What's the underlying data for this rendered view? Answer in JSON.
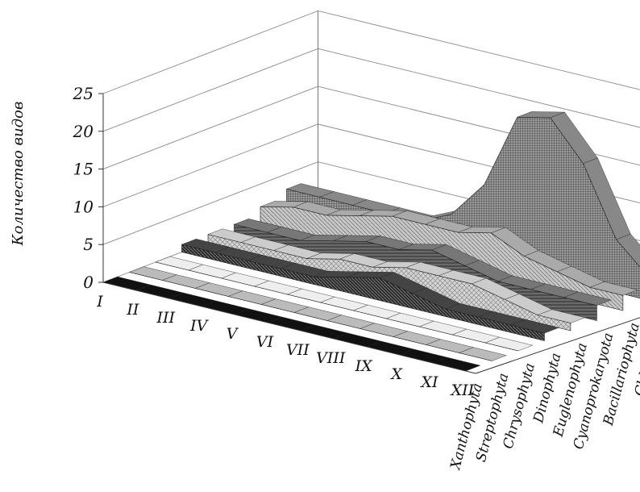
{
  "chart_data": {
    "type": "area",
    "variant": "3d-ribbon",
    "title": "",
    "ylabel": "Количество видов",
    "ylim": [
      0,
      25
    ],
    "yticks": [
      "0",
      "5",
      "10",
      "15",
      "20",
      "25"
    ],
    "categories": [
      "I",
      "II",
      "III",
      "IV",
      "V",
      "VI",
      "VII",
      "VIII",
      "IX",
      "X",
      "XI",
      "XII"
    ],
    "series_names": [
      "Xanthophyta",
      "Streptophyta",
      "Chrysophyta",
      "Dinophyta",
      "Euglenophyta",
      "Cyanoprokaryota",
      "Bacillariophyta",
      "Chlorophyta"
    ],
    "series": [
      {
        "values": [
          0,
          0,
          0,
          0,
          0,
          0,
          0,
          0,
          0,
          0,
          0,
          0
        ]
      },
      {
        "values": [
          0,
          0,
          0,
          0,
          0,
          0,
          0,
          0,
          0,
          0,
          0,
          0
        ]
      },
      {
        "values": [
          0,
          0,
          0,
          0,
          0,
          0,
          0,
          0,
          0,
          0,
          0,
          0
        ]
      },
      {
        "values": [
          1,
          1,
          1,
          1,
          1,
          2,
          3,
          2,
          1,
          1,
          1,
          1
        ]
      },
      {
        "values": [
          1,
          1,
          1,
          1,
          2,
          2,
          3,
          3,
          3,
          2,
          1,
          1
        ]
      },
      {
        "values": [
          1,
          1,
          1,
          2,
          3,
          3,
          4,
          3,
          2,
          2,
          2,
          2
        ]
      },
      {
        "values": [
          2,
          3,
          3,
          4,
          5,
          5,
          5,
          6,
          4,
          3,
          2,
          2
        ]
      },
      {
        "values": [
          3,
          3,
          3,
          3,
          3,
          5,
          10,
          20,
          21,
          16,
          7,
          3
        ]
      }
    ],
    "series_colors": [
      "#0a0a0a",
      "#9a9a9a",
      "#d9d9d9",
      "#3a3a3a",
      "#c4c4c4",
      "#5c5c5c",
      "#a6a6a6",
      "#6a6a6a"
    ],
    "grid": true,
    "legend": "none"
  }
}
